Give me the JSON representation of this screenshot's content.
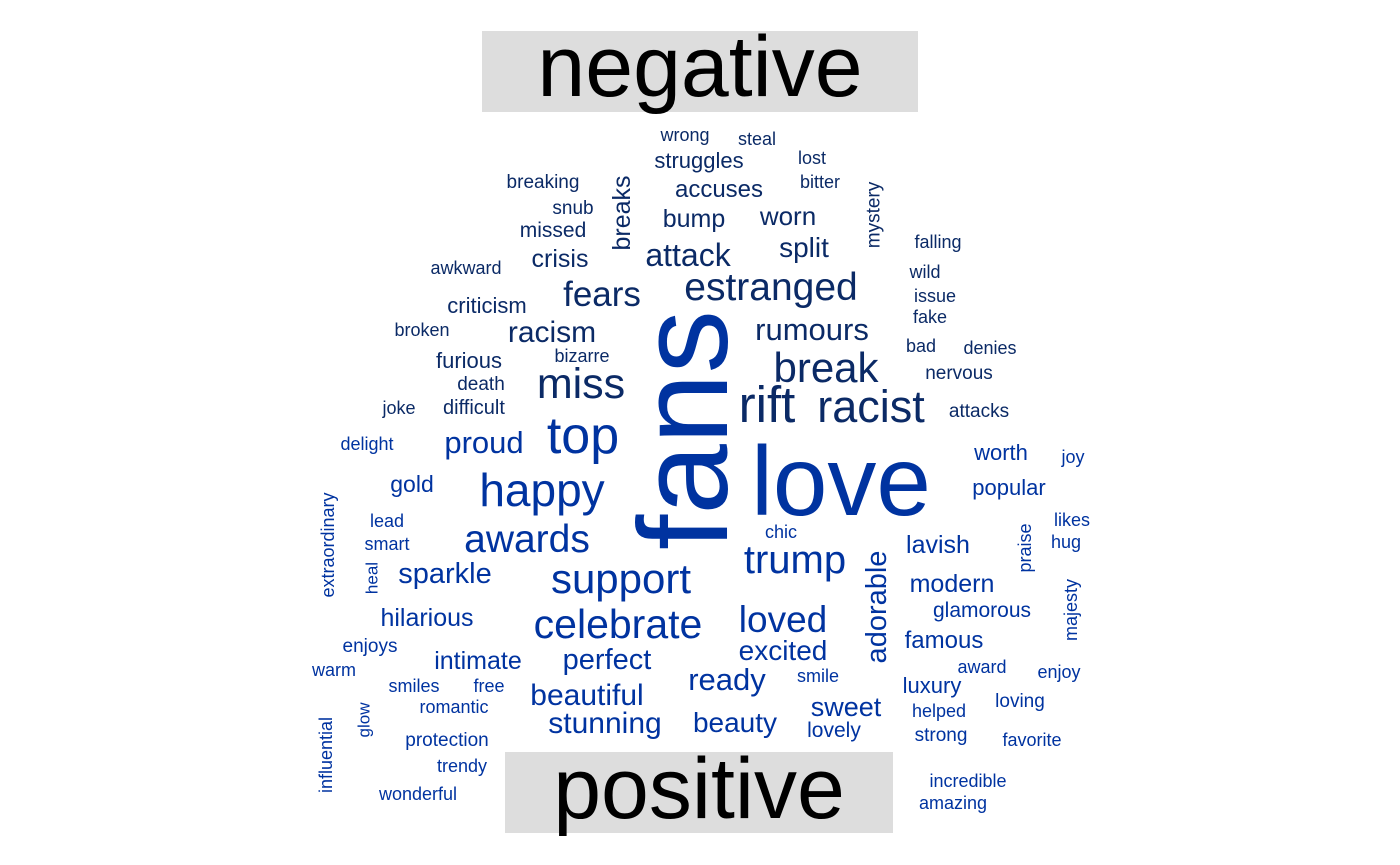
{
  "chart_data": {
    "type": "comparison_wordcloud",
    "groups": [
      {
        "label": "negative",
        "color": "#0b2a66",
        "words": [
          {
            "text": "wrong",
            "freq": 18
          },
          {
            "text": "steal",
            "freq": 18
          },
          {
            "text": "struggles",
            "freq": 22
          },
          {
            "text": "lost",
            "freq": 18
          },
          {
            "text": "breaking",
            "freq": 19
          },
          {
            "text": "accuses",
            "freq": 24
          },
          {
            "text": "bitter",
            "freq": 18
          },
          {
            "text": "breaks",
            "freq": 26
          },
          {
            "text": "snub",
            "freq": 19
          },
          {
            "text": "bump",
            "freq": 25
          },
          {
            "text": "worn",
            "freq": 27
          },
          {
            "text": "mystery",
            "freq": 19
          },
          {
            "text": "missed",
            "freq": 21
          },
          {
            "text": "falling",
            "freq": 18
          },
          {
            "text": "crisis",
            "freq": 26
          },
          {
            "text": "attack",
            "freq": 33
          },
          {
            "text": "split",
            "freq": 29
          },
          {
            "text": "awkward",
            "freq": 18
          },
          {
            "text": "wild",
            "freq": 18
          },
          {
            "text": "fears",
            "freq": 36
          },
          {
            "text": "estranged",
            "freq": 40
          },
          {
            "text": "issue",
            "freq": 18
          },
          {
            "text": "criticism",
            "freq": 22
          },
          {
            "text": "fake",
            "freq": 18
          },
          {
            "text": "broken",
            "freq": 18
          },
          {
            "text": "racism",
            "freq": 31
          },
          {
            "text": "rumours",
            "freq": 32
          },
          {
            "text": "bad",
            "freq": 18
          },
          {
            "text": "denies",
            "freq": 18
          },
          {
            "text": "furious",
            "freq": 22
          },
          {
            "text": "bizarre",
            "freq": 18
          },
          {
            "text": "break",
            "freq": 43
          },
          {
            "text": "nervous",
            "freq": 19
          },
          {
            "text": "death",
            "freq": 19
          },
          {
            "text": "miss",
            "freq": 44
          },
          {
            "text": "joke",
            "freq": 18
          },
          {
            "text": "difficult",
            "freq": 20
          },
          {
            "text": "rift",
            "freq": 52
          },
          {
            "text": "racist",
            "freq": 46
          },
          {
            "text": "attacks",
            "freq": 19
          }
        ]
      },
      {
        "label": "positive",
        "color": "#0033a0",
        "words": [
          {
            "text": "fans",
            "freq": 130
          },
          {
            "text": "love",
            "freq": 100
          },
          {
            "text": "delight",
            "freq": 18
          },
          {
            "text": "proud",
            "freq": 32
          },
          {
            "text": "top",
            "freq": 53
          },
          {
            "text": "worth",
            "freq": 22
          },
          {
            "text": "joy",
            "freq": 18
          },
          {
            "text": "gold",
            "freq": 23
          },
          {
            "text": "happy",
            "freq": 47
          },
          {
            "text": "popular",
            "freq": 22
          },
          {
            "text": "extraordinary",
            "freq": 18
          },
          {
            "text": "lead",
            "freq": 18
          },
          {
            "text": "likes",
            "freq": 18
          },
          {
            "text": "chic",
            "freq": 18
          },
          {
            "text": "smart",
            "freq": 18
          },
          {
            "text": "awards",
            "freq": 40
          },
          {
            "text": "praise",
            "freq": 18
          },
          {
            "text": "hug",
            "freq": 18
          },
          {
            "text": "lavish",
            "freq": 26
          },
          {
            "text": "trump",
            "freq": 41
          },
          {
            "text": "adorable",
            "freq": 30
          },
          {
            "text": "heal",
            "freq": 17
          },
          {
            "text": "sparkle",
            "freq": 30
          },
          {
            "text": "support",
            "freq": 43
          },
          {
            "text": "modern",
            "freq": 25
          },
          {
            "text": "majesty",
            "freq": 18
          },
          {
            "text": "glamorous",
            "freq": 21
          },
          {
            "text": "hilarious",
            "freq": 25
          },
          {
            "text": "loved",
            "freq": 38
          },
          {
            "text": "celebrate",
            "freq": 42
          },
          {
            "text": "famous",
            "freq": 24
          },
          {
            "text": "enjoys",
            "freq": 19
          },
          {
            "text": "excited",
            "freq": 29
          },
          {
            "text": "warm",
            "freq": 18
          },
          {
            "text": "intimate",
            "freq": 25
          },
          {
            "text": "perfect",
            "freq": 30
          },
          {
            "text": "award",
            "freq": 18
          },
          {
            "text": "enjoy",
            "freq": 18
          },
          {
            "text": "smile",
            "freq": 18
          },
          {
            "text": "ready",
            "freq": 32
          },
          {
            "text": "smiles",
            "freq": 18
          },
          {
            "text": "free",
            "freq": 18
          },
          {
            "text": "luxury",
            "freq": 22
          },
          {
            "text": "beautiful",
            "freq": 31
          },
          {
            "text": "loving",
            "freq": 19
          },
          {
            "text": "romantic",
            "freq": 18
          },
          {
            "text": "sweet",
            "freq": 28
          },
          {
            "text": "glow",
            "freq": 17
          },
          {
            "text": "helped",
            "freq": 18
          },
          {
            "text": "influential",
            "freq": 18
          },
          {
            "text": "stunning",
            "freq": 31
          },
          {
            "text": "beauty",
            "freq": 29
          },
          {
            "text": "lovely",
            "freq": 21
          },
          {
            "text": "protection",
            "freq": 19
          },
          {
            "text": "strong",
            "freq": 19
          },
          {
            "text": "favorite",
            "freq": 18
          },
          {
            "text": "trendy",
            "freq": 18
          },
          {
            "text": "incredible",
            "freq": 18
          },
          {
            "text": "wonderful",
            "freq": 18
          },
          {
            "text": "amazing",
            "freq": 18
          }
        ]
      }
    ],
    "label_background": "#dddddd",
    "label_color": "#000000",
    "legend": "none"
  }
}
